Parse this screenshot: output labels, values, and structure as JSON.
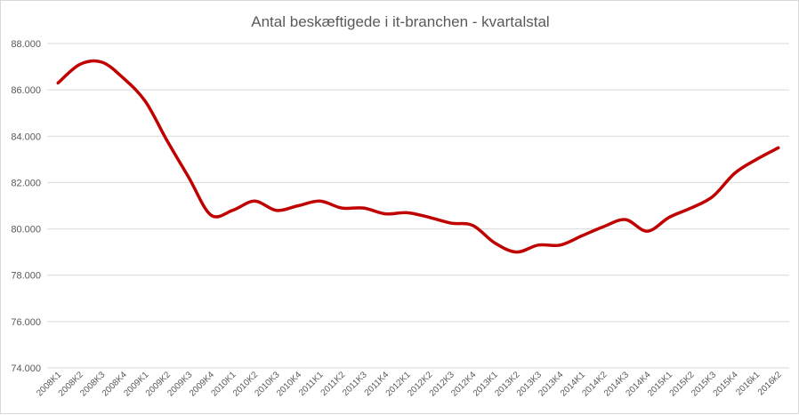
{
  "chart_data": {
    "type": "line",
    "title": "Antal beskæftigede i it-branchen - kvartalstal",
    "xlabel": "",
    "ylabel": "",
    "ylim": [
      74000,
      88000
    ],
    "ytick_labels": [
      "74.000",
      "76.000",
      "78.000",
      "80.000",
      "82.000",
      "84.000",
      "86.000",
      "88.000"
    ],
    "grid": true,
    "legend": "none",
    "line_color": "#c00000",
    "categories": [
      "2008K1",
      "2008K2",
      "2008K3",
      "2008K4",
      "2009K1",
      "2009K2",
      "2009K3",
      "2009K4",
      "2010K1",
      "2010K2",
      "2010K3",
      "2010K4",
      "2011K1",
      "2011K2",
      "2011K3",
      "2011K4",
      "2012K1",
      "2012K2",
      "2012K3",
      "2012K4",
      "2013K1",
      "2013K2",
      "2013K3",
      "2013K4",
      "2014K1",
      "2014K2",
      "2014K3",
      "2014K4",
      "2015K1",
      "2015K2",
      "2015K3",
      "2015K4",
      "2016k1",
      "2016k2"
    ],
    "values": [
      86300,
      87100,
      87200,
      86500,
      85500,
      83800,
      82200,
      80600,
      80800,
      81200,
      80800,
      81000,
      81200,
      80900,
      80900,
      80650,
      80700,
      80500,
      80250,
      80150,
      79400,
      79000,
      79300,
      79300,
      79700,
      80100,
      80400,
      79900,
      80500,
      80900,
      81400,
      82400,
      83000,
      83500
    ]
  }
}
